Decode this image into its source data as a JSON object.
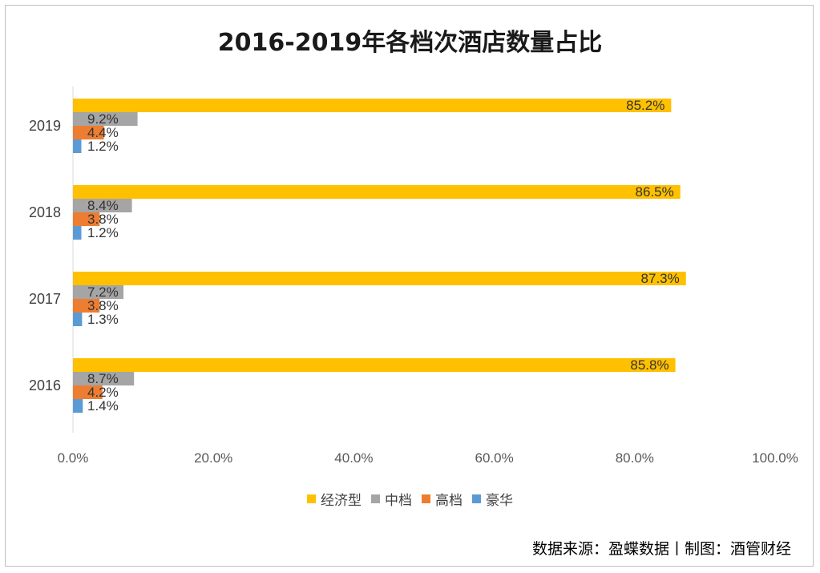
{
  "chart_data": {
    "type": "bar",
    "orientation": "horizontal",
    "title": "2016-2019年各档次酒店数量占比",
    "categories": [
      "2019",
      "2018",
      "2017",
      "2016"
    ],
    "series": [
      {
        "name": "经济型",
        "color": "#FFC000",
        "values": [
          85.2,
          86.5,
          87.3,
          85.8
        ],
        "labels": [
          "85.2%",
          "86.5%",
          "87.3%",
          "85.8%"
        ]
      },
      {
        "name": "中档",
        "color": "#A5A5A5",
        "values": [
          9.2,
          8.4,
          7.2,
          8.7
        ],
        "labels": [
          "9.2%",
          "8.4%",
          "7.2%",
          "8.7%"
        ]
      },
      {
        "name": "高档",
        "color": "#ED7D31",
        "values": [
          4.4,
          3.8,
          3.8,
          4.2
        ],
        "labels": [
          "4.4%",
          "3.8%",
          "3.8%",
          "4.2%"
        ]
      },
      {
        "name": "豪华",
        "color": "#5B9BD5",
        "values": [
          1.2,
          1.2,
          1.3,
          1.4
        ],
        "labels": [
          "1.2%",
          "1.2%",
          "1.3%",
          "1.4%"
        ]
      }
    ],
    "xlim": [
      0,
      100
    ],
    "xticks": [
      "0.0%",
      "20.0%",
      "40.0%",
      "60.0%",
      "80.0%",
      "100.0%"
    ],
    "grid": false,
    "legend_position": "bottom"
  },
  "source_note": "数据来源：盈蝶数据丨制图：酒管财经"
}
